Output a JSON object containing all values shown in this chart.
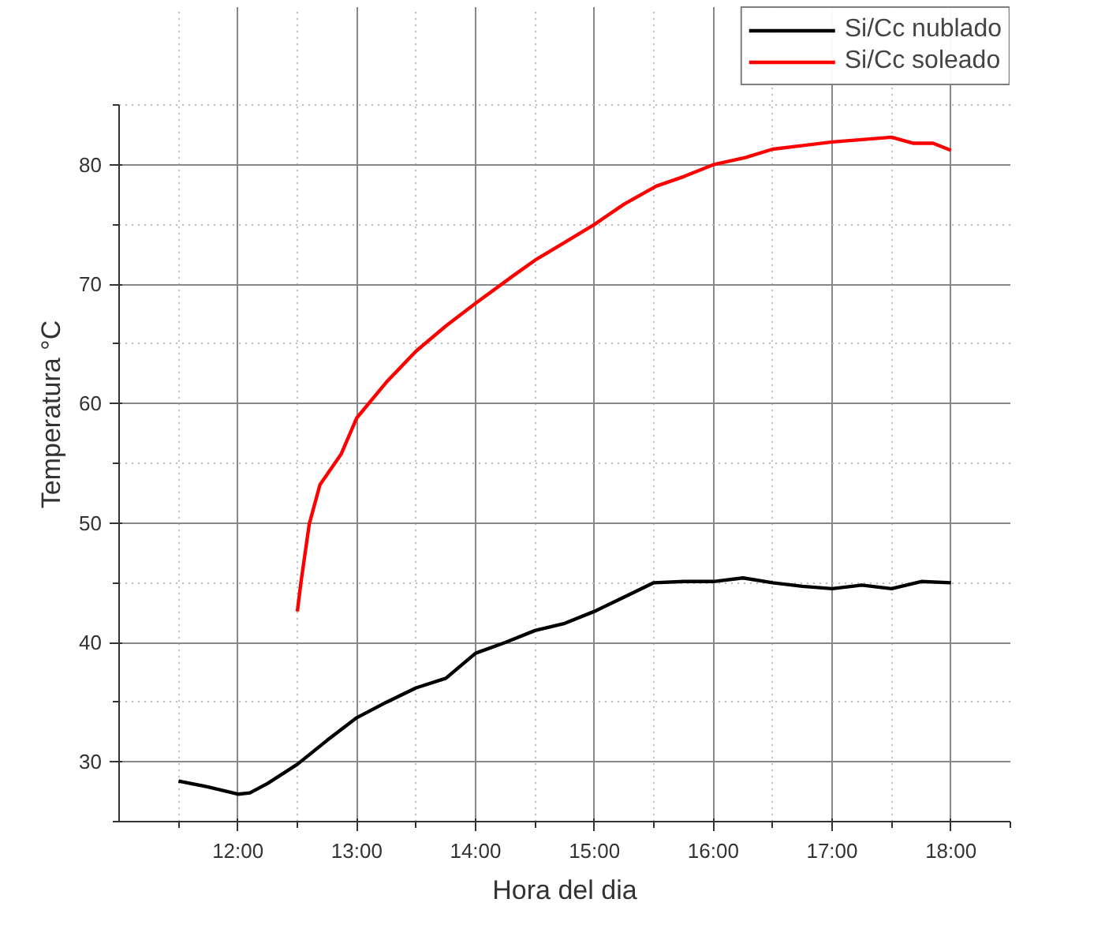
{
  "chart_data": {
    "type": "line",
    "xlabel": "Hora del dia",
    "ylabel": "Temperatura °C",
    "xlim": [
      11,
      18.5
    ],
    "ylim": [
      25,
      85
    ],
    "xticks": [
      {
        "value": 12,
        "label": "12:00"
      },
      {
        "value": 13,
        "label": "13:00"
      },
      {
        "value": 14,
        "label": "14:00"
      },
      {
        "value": 15,
        "label": "15:00"
      },
      {
        "value": 16,
        "label": "16:00"
      },
      {
        "value": 17,
        "label": "17:00"
      },
      {
        "value": 18,
        "label": "18:00"
      }
    ],
    "yticks": [
      30,
      40,
      50,
      60,
      70,
      80
    ],
    "grid": true,
    "legend": "top right",
    "line_style": "solid",
    "series": [
      {
        "name": "Si/Cc nublado",
        "color": "#000000",
        "x": [
          11.5,
          11.75,
          12.0,
          12.1,
          12.25,
          12.5,
          12.75,
          13.0,
          13.25,
          13.5,
          13.75,
          14.0,
          14.25,
          14.5,
          14.75,
          15.0,
          15.25,
          15.5,
          15.75,
          16.0,
          16.25,
          16.5,
          16.75,
          17.0,
          17.25,
          17.5,
          17.75,
          18.0
        ],
        "values": [
          28.4,
          27.9,
          27.3,
          27.4,
          28.2,
          29.8,
          31.8,
          33.7,
          35.0,
          36.2,
          37.0,
          39.1,
          40.0,
          41.0,
          41.6,
          42.6,
          43.8,
          45.0,
          45.1,
          45.1,
          45.4,
          45.0,
          44.7,
          44.5,
          44.8,
          44.5,
          45.1,
          45.0
        ]
      },
      {
        "name": "Si/Cc soleado",
        "color": "#ff0000",
        "x": [
          12.5,
          12.53,
          12.6,
          12.69,
          12.87,
          13.0,
          13.25,
          13.5,
          13.75,
          14.0,
          14.33,
          14.5,
          14.75,
          15.0,
          15.25,
          15.52,
          15.75,
          16.0,
          16.27,
          16.5,
          17.0,
          17.5,
          17.68,
          17.85,
          18.0
        ],
        "values": [
          42.6,
          45.0,
          49.9,
          53.2,
          55.8,
          58.8,
          61.8,
          64.4,
          66.5,
          68.4,
          70.8,
          72.0,
          73.5,
          75.0,
          76.7,
          78.2,
          79.0,
          80.0,
          80.6,
          81.3,
          81.9,
          82.3,
          81.8,
          81.8,
          81.2
        ]
      }
    ]
  }
}
